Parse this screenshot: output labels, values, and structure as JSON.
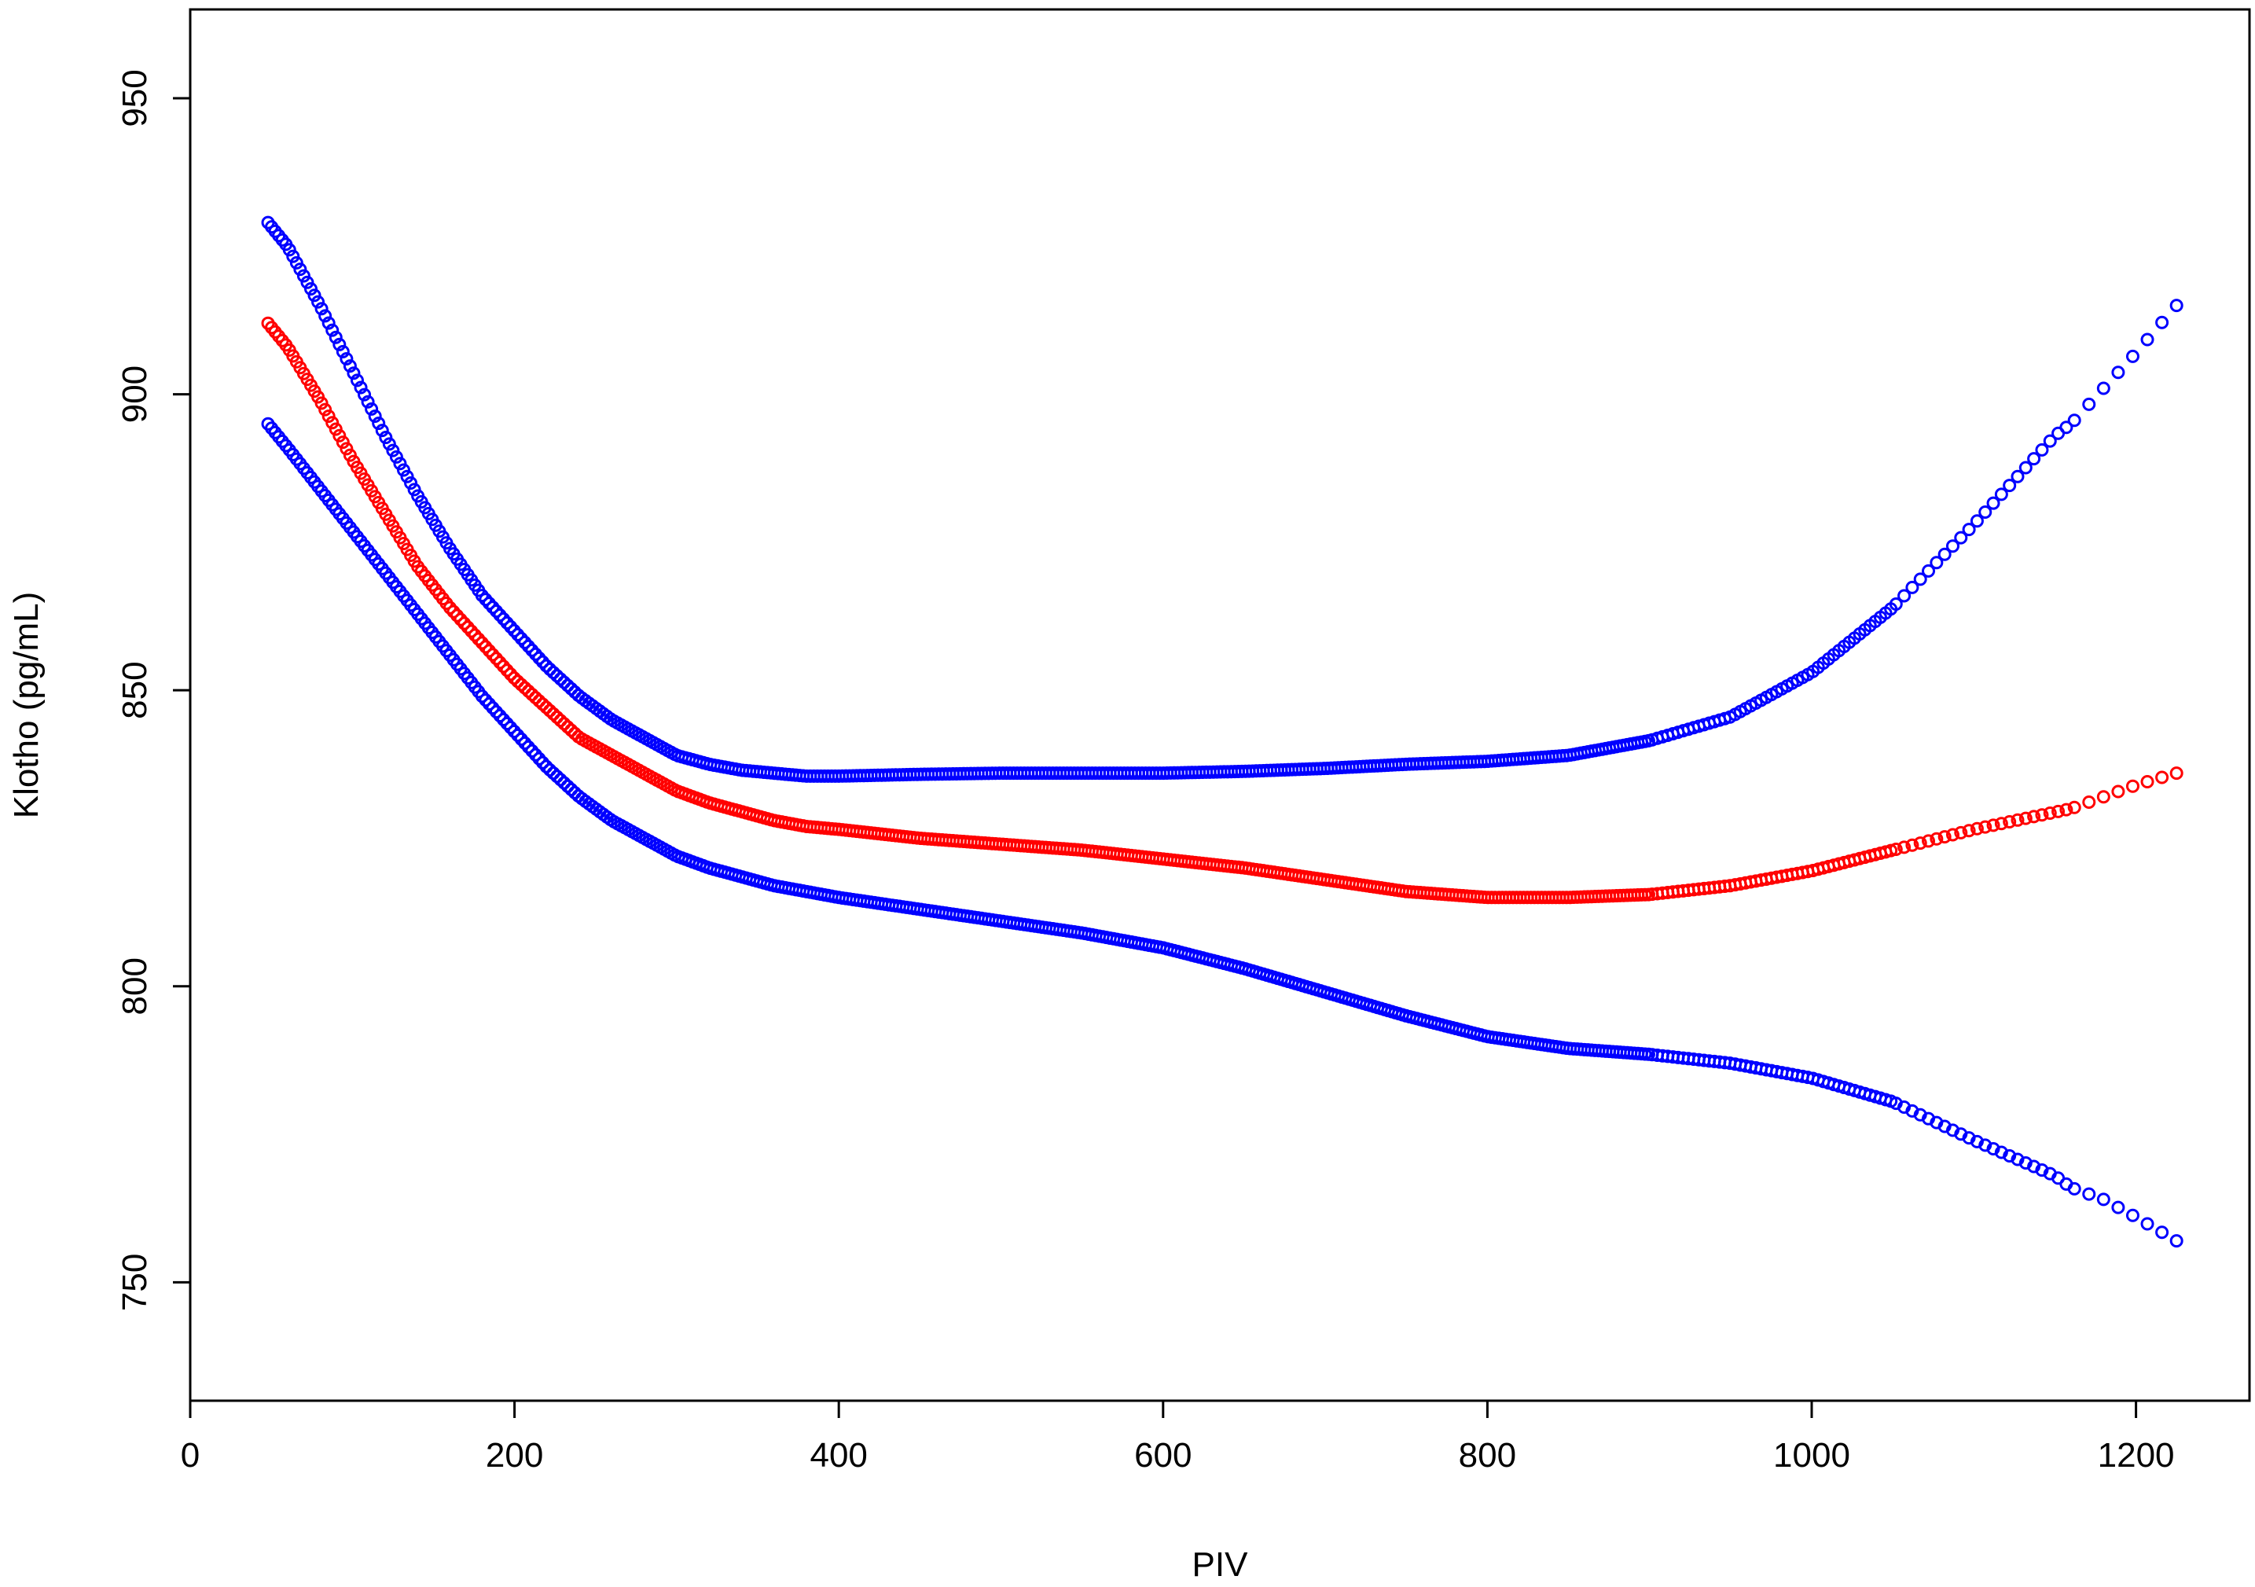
{
  "chart_data": {
    "type": "scatter",
    "title": "",
    "xlabel": "PIV",
    "ylabel": "Klotho (pg/mL)",
    "xlim": [
      0,
      1270
    ],
    "ylim": [
      730,
      965
    ],
    "x_ticks": [
      0,
      200,
      400,
      600,
      800,
      1000,
      1200
    ],
    "y_ticks": [
      750,
      800,
      850,
      900,
      950
    ],
    "grid": false,
    "legend": "none",
    "colors": {
      "fit": "#ff0000",
      "ci": "#0000ff",
      "axis": "#000000"
    },
    "series": [
      {
        "role": "upper-bound",
        "color": "#0000ff",
        "x": [
          48,
          60,
          80,
          100,
          120,
          140,
          160,
          180,
          200,
          220,
          240,
          260,
          280,
          300,
          320,
          340,
          360,
          380,
          400,
          450,
          500,
          550,
          600,
          650,
          700,
          750,
          800,
          850,
          900,
          950,
          1000,
          1050,
          1100,
          1150,
          1160,
          1180,
          1200,
          1225
        ],
        "y": [
          929,
          925,
          915,
          904,
          893,
          883,
          874,
          866,
          860,
          854,
          849,
          845,
          842,
          839,
          837.5,
          836.5,
          836,
          835.5,
          835.5,
          835.8,
          836,
          836,
          836,
          836.3,
          836.8,
          837.5,
          838,
          839,
          841.5,
          845.5,
          853,
          864,
          878,
          893,
          895,
          901,
          907,
          915
        ]
      },
      {
        "role": "fit",
        "color": "#ff0000",
        "x": [
          48,
          60,
          80,
          100,
          120,
          140,
          160,
          180,
          200,
          220,
          240,
          260,
          280,
          300,
          320,
          340,
          360,
          380,
          400,
          450,
          500,
          550,
          600,
          650,
          700,
          750,
          800,
          850,
          900,
          950,
          1000,
          1050,
          1100,
          1160,
          1180,
          1200,
          1225
        ],
        "y": [
          912,
          908,
          899,
          889,
          880,
          871,
          864,
          858,
          852,
          847,
          842,
          839,
          836,
          833,
          831,
          829.5,
          828,
          827,
          826.5,
          825,
          824,
          823,
          821.5,
          820,
          818,
          816,
          815,
          815,
          815.5,
          817,
          819.5,
          823,
          826.5,
          830,
          832,
          834,
          836
        ]
      },
      {
        "role": "lower-bound",
        "color": "#0000ff",
        "x": [
          48,
          60,
          80,
          100,
          120,
          140,
          160,
          180,
          200,
          220,
          240,
          260,
          280,
          300,
          320,
          340,
          360,
          380,
          400,
          450,
          500,
          550,
          600,
          650,
          700,
          750,
          800,
          850,
          900,
          950,
          1000,
          1050,
          1100,
          1150,
          1160,
          1180,
          1200,
          1225
        ],
        "y": [
          895,
          891,
          884,
          877,
          870,
          863,
          856,
          849,
          843,
          837,
          832,
          828,
          825,
          822,
          820,
          818.5,
          817,
          816,
          815,
          813,
          811,
          809,
          806.5,
          803,
          799,
          795,
          791.5,
          789.5,
          788.5,
          787,
          784.5,
          780.5,
          774,
          768,
          766,
          764,
          761,
          757
        ]
      }
    ]
  }
}
